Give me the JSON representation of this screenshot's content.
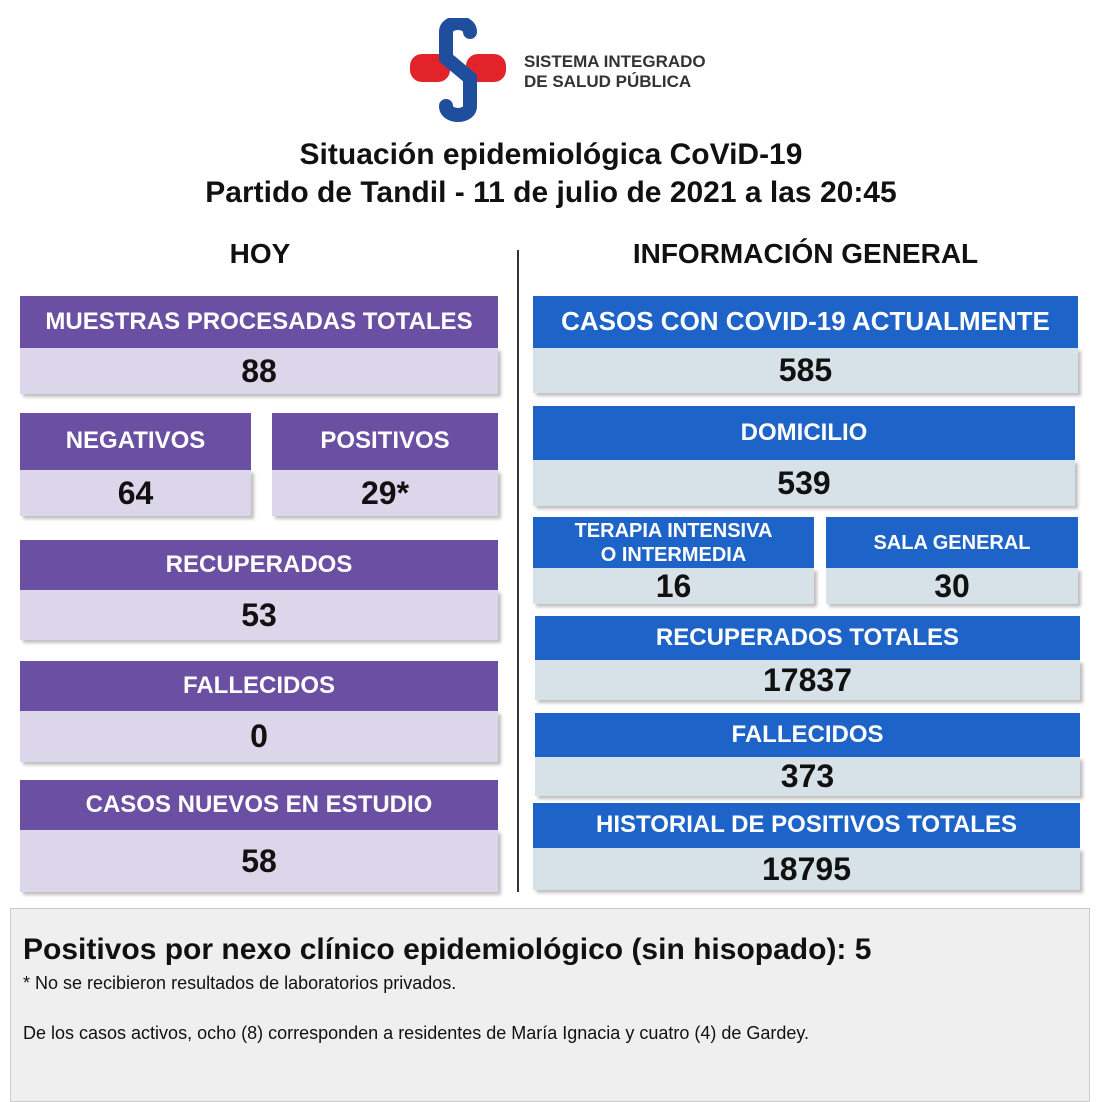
{
  "logo": {
    "line1": "SISTEMA INTEGRADO",
    "line2": "DE SALUD PÚBLICA"
  },
  "header": {
    "title": "Situación epidemiológica CoViD-19",
    "subtitle": "Partido de Tandil - 11 de julio de 2021 a las 20:45"
  },
  "today": {
    "heading": "HOY",
    "boxes": [
      {
        "label": "MUESTRAS PROCESADAS TOTALES",
        "value": "88"
      },
      {
        "label": "NEGATIVOS",
        "value": "64"
      },
      {
        "label": "POSITIVOS",
        "value": "29*"
      },
      {
        "label": "RECUPERADOS",
        "value": "53"
      },
      {
        "label": "FALLECIDOS",
        "value": "0"
      },
      {
        "label": "CASOS NUEVOS EN ESTUDIO",
        "value": "58"
      }
    ]
  },
  "general": {
    "heading": "INFORMACIÓN GENERAL",
    "boxes": [
      {
        "label": "CASOS CON COVID-19 ACTUALMENTE",
        "value": "585"
      },
      {
        "label": "DOMICILIO",
        "value": "539"
      },
      {
        "label": "TERAPIA INTENSIVA\nO INTERMEDIA",
        "value": "16"
      },
      {
        "label": "SALA GENERAL",
        "value": "30"
      },
      {
        "label": "RECUPERADOS TOTALES",
        "value": "17837"
      },
      {
        "label": "FALLECIDOS",
        "value": "373"
      },
      {
        "label": "HISTORIAL DE POSITIVOS TOTALES",
        "value": "18795"
      }
    ]
  },
  "footer": {
    "title": "Positivos por nexo clínico epidemiológico (sin hisopado): 5",
    "note": "* No se recibieron resultados de laboratorios privados.",
    "text": "De los casos activos, ocho (8) corresponden a residentes de María Ignacia y cuatro (4) de Gardey."
  }
}
